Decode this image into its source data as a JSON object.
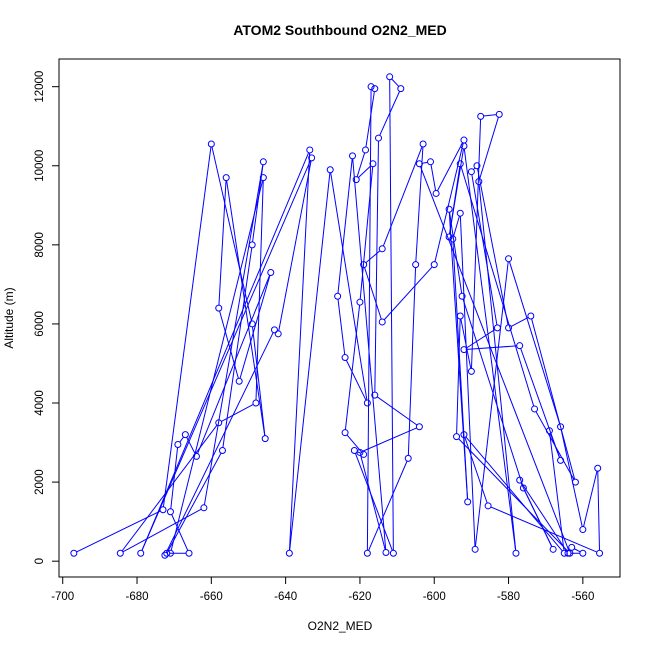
{
  "chart_data": {
    "type": "line",
    "title": "ATOM2 Southbound O2N2_MED",
    "xlabel": "O2N2_MED",
    "ylabel": "Altitude (m)",
    "xlim": [
      -701,
      -550
    ],
    "ylim": [
      -400,
      12700
    ],
    "xticks": [
      -700,
      -680,
      -660,
      -640,
      -620,
      -600,
      -580,
      -560
    ],
    "yticks": [
      0,
      2000,
      4000,
      6000,
      8000,
      10000,
      12000
    ],
    "color": "#0000ff",
    "series": [
      {
        "points": [
          [
            -697,
            200
          ],
          [
            -673,
            1300
          ],
          [
            -660,
            10550
          ],
          [
            -649,
            6000
          ],
          [
            -645.5,
            3100
          ],
          [
            -656,
            9700
          ],
          [
            -658,
            6400
          ],
          [
            -652.5,
            4550
          ],
          [
            -644,
            7300
          ],
          [
            -664,
            2650
          ],
          [
            -667,
            3200
          ],
          [
            -669,
            2950
          ],
          [
            -671,
            1250
          ],
          [
            -666,
            200
          ],
          [
            -672,
            200
          ],
          [
            -657,
            2800
          ],
          [
            -649,
            8000
          ],
          [
            -646,
            10100
          ],
          [
            -662,
            1350
          ],
          [
            -684.5,
            200
          ],
          [
            -658,
            3500
          ],
          [
            -648,
            4000
          ],
          [
            -646,
            9700
          ],
          [
            -671,
            200
          ],
          [
            -672.5,
            150
          ],
          [
            -643,
            5850
          ],
          [
            -642,
            5750
          ],
          [
            -633,
            10200
          ],
          [
            -679,
            200
          ],
          [
            -633.5,
            10400
          ],
          [
            -639,
            200
          ],
          [
            -628,
            9900
          ],
          [
            -618,
            4000
          ],
          [
            -624,
            5150
          ],
          [
            -626,
            6700
          ],
          [
            -622,
            10250
          ],
          [
            -613,
            220
          ],
          [
            -620,
            2750
          ],
          [
            -604,
            3400
          ],
          [
            -616,
            4200
          ],
          [
            -615,
            10700
          ],
          [
            -609,
            11950
          ],
          [
            -612,
            12250
          ],
          [
            -611,
            200
          ],
          [
            -621.5,
            2800
          ],
          [
            -619,
            2700
          ],
          [
            -624,
            3250
          ],
          [
            -620,
            6550
          ],
          [
            -616.5,
            10050
          ],
          [
            -621,
            9650
          ],
          [
            -618.5,
            10400
          ],
          [
            -616,
            11950
          ],
          [
            -617,
            12000
          ],
          [
            -618,
            200
          ],
          [
            -607,
            2600
          ],
          [
            -605,
            7500
          ],
          [
            -603,
            10550
          ],
          [
            -614,
            7900
          ],
          [
            -619,
            7500
          ],
          [
            -614,
            6050
          ],
          [
            -600,
            7500
          ],
          [
            -592,
            10650
          ],
          [
            -599.5,
            9300
          ],
          [
            -601,
            10100
          ],
          [
            -604,
            10050
          ],
          [
            -563.5,
            200
          ],
          [
            -594,
            3150
          ],
          [
            -593,
            6200
          ],
          [
            -590,
            4800
          ],
          [
            -587.5,
            11250
          ],
          [
            -582.5,
            11300
          ],
          [
            -588,
            9600
          ],
          [
            -578,
            200
          ],
          [
            -592,
            10500
          ],
          [
            -596,
            8200
          ],
          [
            -593,
            10050
          ],
          [
            -573,
            3850
          ],
          [
            -562,
            2000
          ],
          [
            -574,
            6200
          ],
          [
            -580,
            5900
          ],
          [
            -588.5,
            10000
          ],
          [
            -590,
            9850
          ],
          [
            -583,
            5900
          ],
          [
            -592,
            5350
          ],
          [
            -577,
            5450
          ],
          [
            -566,
            2550
          ],
          [
            -569,
            3300
          ],
          [
            -565,
            200
          ],
          [
            -592,
            3200
          ],
          [
            -585.5,
            1400
          ],
          [
            -555.5,
            200
          ],
          [
            -556,
            2350
          ],
          [
            -560,
            800
          ],
          [
            -566,
            3400
          ],
          [
            -580,
            7650
          ],
          [
            -589,
            300
          ],
          [
            -593,
            8800
          ],
          [
            -595,
            8150
          ],
          [
            -591,
            1500
          ],
          [
            -596,
            8900
          ],
          [
            -592.5,
            6700
          ],
          [
            -576,
            1850
          ],
          [
            -568,
            300
          ],
          [
            -577,
            2050
          ],
          [
            -564,
            200
          ],
          [
            -560,
            200
          ],
          [
            -563,
            350
          ]
        ]
      }
    ]
  }
}
